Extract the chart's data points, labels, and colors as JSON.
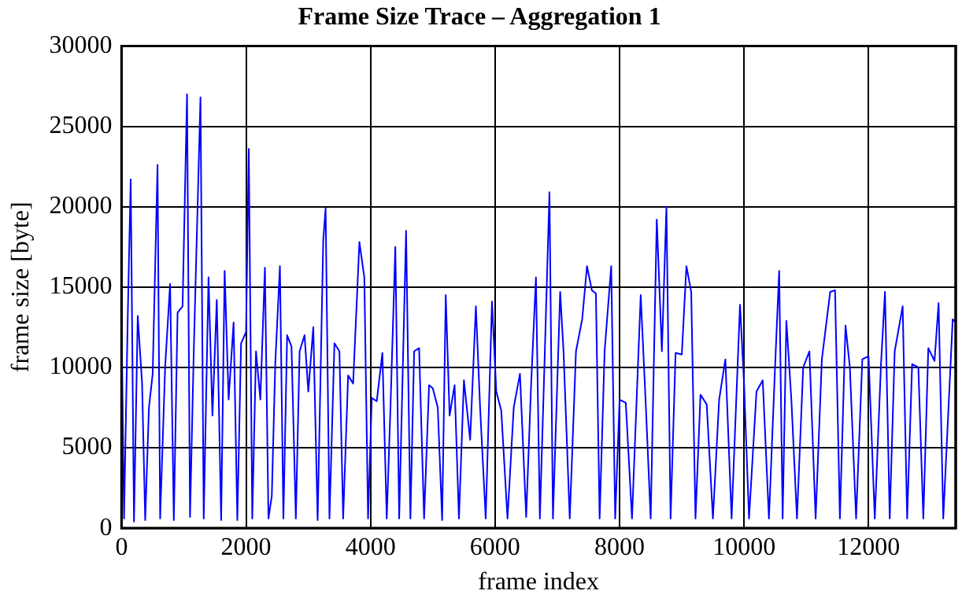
{
  "chart_data": {
    "type": "line",
    "title": "Frame Size Trace – Aggregation 1",
    "xlabel": "frame index",
    "ylabel": "frame size [byte]",
    "xlim": [
      0,
      13400
    ],
    "xticks": [
      0,
      2000,
      4000,
      6000,
      8000,
      10000,
      12000
    ],
    "ylim": [
      0,
      30000
    ],
    "yticks": [
      0,
      5000,
      10000,
      15000,
      20000,
      25000,
      30000
    ],
    "grid": true,
    "line_style": "solid",
    "marker": "none",
    "series": [
      {
        "color": "#0000ff",
        "x": [
          0,
          40,
          100,
          147,
          200,
          260,
          330,
          380,
          440,
          500,
          578,
          620,
          700,
          780,
          840,
          900,
          980,
          1052,
          1100,
          1160,
          1268,
          1320,
          1397,
          1460,
          1530,
          1600,
          1656,
          1720,
          1800,
          1860,
          1920,
          2000,
          2044,
          2100,
          2160,
          2230,
          2303,
          2360,
          2414,
          2470,
          2544,
          2600,
          2660,
          2730,
          2800,
          2860,
          2940,
          3000,
          3080,
          3150,
          3240,
          3278,
          3340,
          3420,
          3500,
          3560,
          3640,
          3720,
          3821,
          3900,
          3960,
          4020,
          4100,
          4190,
          4260,
          4320,
          4398,
          4460,
          4571,
          4640,
          4700,
          4780,
          4860,
          4940,
          5000,
          5080,
          5150,
          5208,
          5270,
          5350,
          5420,
          5500,
          5600,
          5692,
          5760,
          5850,
          5951,
          6020,
          6100,
          6200,
          6300,
          6400,
          6500,
          6580,
          6657,
          6720,
          6800,
          6874,
          6930,
          7046,
          7100,
          7200,
          7300,
          7400,
          7477,
          7555,
          7620,
          7680,
          7760,
          7866,
          7930,
          8000,
          8100,
          8200,
          8340,
          8420,
          8500,
          8598,
          8680,
          8753,
          8820,
          8900,
          9000,
          9074,
          9151,
          9220,
          9300,
          9400,
          9500,
          9600,
          9700,
          9800,
          9935,
          10000,
          10080,
          10200,
          10300,
          10400,
          10500,
          10564,
          10620,
          10680,
          10760,
          10850,
          10950,
          11050,
          11150,
          11250,
          11384,
          11462,
          11540,
          11630,
          11700,
          11800,
          11900,
          12000,
          12100,
          12200,
          12264,
          12340,
          12420,
          12548,
          12620,
          12700,
          12800,
          12880,
          12960,
          13060,
          13125,
          13200,
          13352,
          13400
        ],
        "values": [
          13000,
          600,
          13200,
          21700,
          400,
          13200,
          9000,
          500,
          7500,
          9600,
          22600,
          600,
          10000,
          15200,
          500,
          13400,
          13800,
          27000,
          700,
          11000,
          26800,
          600,
          15600,
          7000,
          14200,
          500,
          16000,
          8000,
          12800,
          500,
          11500,
          12200,
          23600,
          600,
          11000,
          8000,
          16200,
          600,
          2000,
          10300,
          16300,
          600,
          12000,
          11300,
          600,
          11000,
          12000,
          8500,
          12500,
          500,
          17900,
          19900,
          600,
          11500,
          11000,
          600,
          9500,
          9000,
          17800,
          15600,
          600,
          8100,
          7900,
          10900,
          600,
          7500,
          17500,
          600,
          18500,
          600,
          11000,
          11200,
          600,
          8900,
          8700,
          7500,
          500,
          14500,
          7000,
          8900,
          600,
          9200,
          5500,
          13800,
          7500,
          600,
          14100,
          8500,
          7300,
          600,
          7500,
          9600,
          700,
          9000,
          15600,
          600,
          11000,
          20900,
          600,
          14700,
          11000,
          600,
          11000,
          13000,
          16300,
          14800,
          14600,
          600,
          11000,
          16300,
          600,
          8000,
          7800,
          600,
          14500,
          7800,
          600,
          19200,
          11000,
          20000,
          600,
          10900,
          10800,
          16300,
          14700,
          600,
          8300,
          7700,
          600,
          8000,
          10500,
          600,
          13900,
          9000,
          600,
          8500,
          9200,
          600,
          10200,
          16000,
          600,
          12900,
          8000,
          600,
          10000,
          11000,
          600,
          10500,
          14700,
          14800,
          600,
          12600,
          10000,
          600,
          10500,
          10700,
          600,
          10200,
          14700,
          600,
          11000,
          13800,
          600,
          10200,
          10000,
          600,
          11200,
          10400,
          14000,
          600,
          13000,
          12800
        ]
      }
    ]
  }
}
